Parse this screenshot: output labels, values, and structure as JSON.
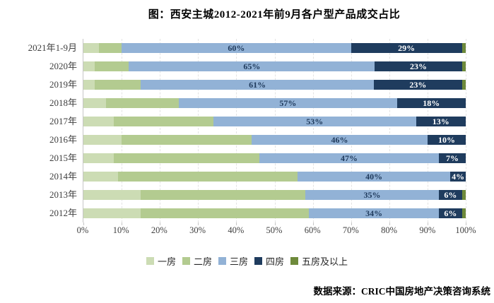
{
  "chart_data": {
    "type": "bar",
    "orientation": "horizontal",
    "stacked": true,
    "title": "图：西安主城2012-2021年前9月各户型产品成交占比",
    "categories": [
      "2021年1-9月",
      "2020年",
      "2019年",
      "2018年",
      "2017年",
      "2016年",
      "2015年",
      "2014年",
      "2013年",
      "2012年"
    ],
    "series": [
      {
        "name": "一房",
        "color": "#ccdcb4",
        "show_labels": false,
        "label_color": "",
        "values": [
          4,
          3,
          3,
          6,
          8,
          10,
          8,
          9,
          15,
          15
        ]
      },
      {
        "name": "二房",
        "color": "#b3cb90",
        "show_labels": false,
        "label_color": "",
        "values": [
          6,
          9,
          12,
          19,
          26,
          34,
          38,
          47,
          43,
          44
        ]
      },
      {
        "name": "三房",
        "color": "#92b2d6",
        "show_labels": true,
        "label_color": "#1f3a5c",
        "values": [
          60,
          65,
          61,
          57,
          53,
          46,
          47,
          40,
          35,
          34
        ]
      },
      {
        "name": "四房",
        "color": "#1f3c5e",
        "show_labels": true,
        "label_color": "#ffffff",
        "values": [
          29,
          23,
          23,
          18,
          13,
          10,
          7,
          4,
          6,
          6
        ]
      },
      {
        "name": "五房及以上",
        "color": "#6e8a3b",
        "show_labels": false,
        "label_color": "",
        "values": [
          1,
          1,
          1,
          0,
          0,
          0,
          0,
          0,
          1,
          1
        ]
      }
    ],
    "x_ticks": [
      "0%",
      "10%",
      "20%",
      "30%",
      "40%",
      "50%",
      "60%",
      "70%",
      "80%",
      "90%",
      "100%"
    ],
    "xlim": [
      0,
      100
    ],
    "value_suffix": "%",
    "grid": "vertical-dashed",
    "legend_position": "bottom"
  },
  "source": "数据来源：CRIC中国房地产决策咨询系统"
}
